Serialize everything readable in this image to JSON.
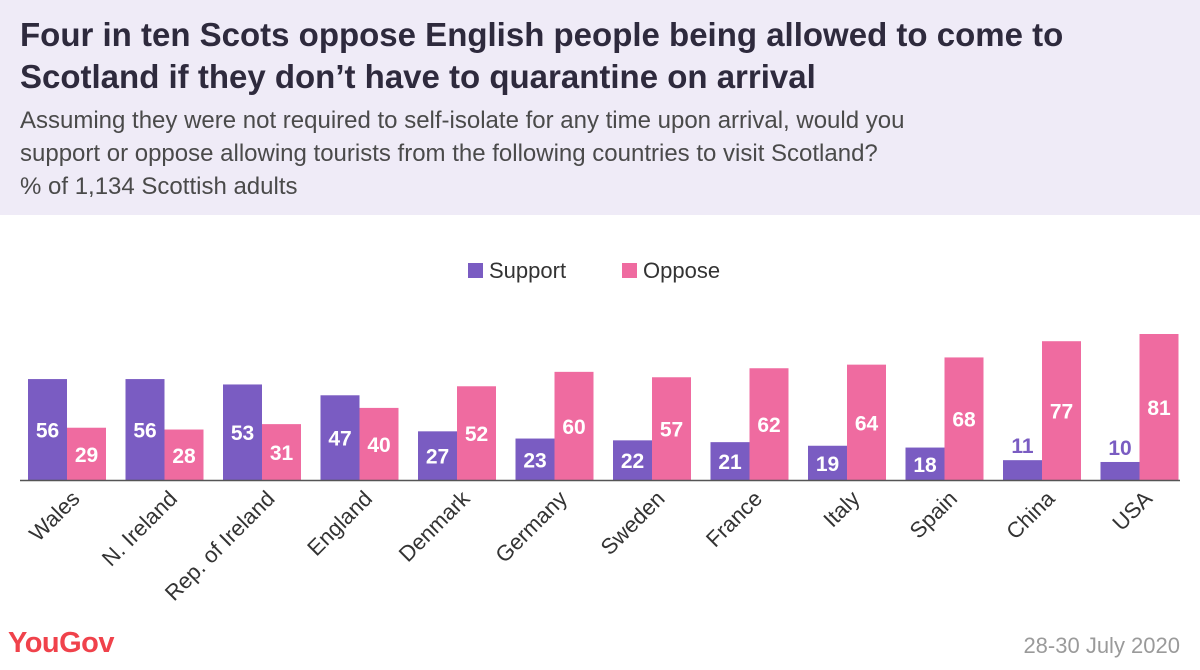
{
  "header": {
    "title_line1": "Four in ten Scots oppose English people being allowed to come to",
    "title_line2": "Scotland if they don’t have to quarantine on arrival",
    "subtitle_line1": "Assuming they were not required to self-isolate for any time upon arrival, would you",
    "subtitle_line2": "support or oppose allowing tourists from the following countries to visit Scotland?",
    "subtitle_line3": "% of 1,134 Scottish adults"
  },
  "footer": {
    "logo": "YouGov",
    "date": "28-30 July 2020"
  },
  "colors": {
    "support": "#7a5cc2",
    "oppose": "#ef6ba0",
    "header_bg": "#efebf7"
  },
  "chart_data": {
    "type": "bar",
    "categories": [
      "Wales",
      "N. Ireland",
      "Rep. of Ireland",
      "England",
      "Denmark",
      "Germany",
      "Sweden",
      "France",
      "Italy",
      "Spain",
      "China",
      "USA"
    ],
    "series": [
      {
        "name": "Support",
        "values": [
          56,
          56,
          53,
          47,
          27,
          23,
          22,
          21,
          19,
          18,
          11,
          10
        ]
      },
      {
        "name": "Oppose",
        "values": [
          29,
          28,
          31,
          40,
          52,
          60,
          57,
          62,
          64,
          68,
          77,
          81
        ]
      }
    ],
    "ylim": [
      0,
      81
    ],
    "legend": "top-center",
    "grid": false,
    "data_labels": true
  }
}
